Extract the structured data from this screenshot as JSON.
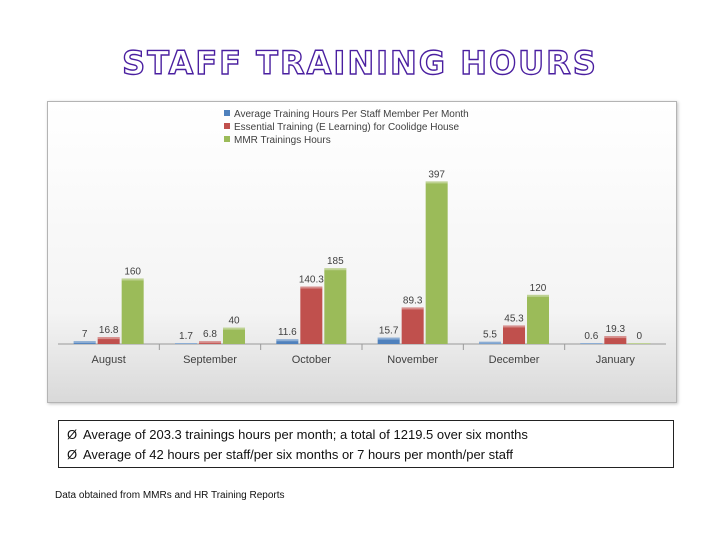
{
  "title": "STAFF TRAINING HOURS",
  "chart_data": {
    "type": "bar",
    "categories": [
      "August",
      "September",
      "October",
      "November",
      "December",
      "January"
    ],
    "series": [
      {
        "name": "Average Training Hours Per Staff Member Per Month",
        "color": "#4f81bd",
        "values": [
          7,
          1.7,
          11.6,
          15.7,
          5.5,
          0.6
        ],
        "labels": [
          "7",
          "1.7",
          "11.6",
          "15.7",
          "5.5",
          "0.6"
        ]
      },
      {
        "name": "Essential Training (E Learning) for Coolidge House",
        "color": "#c0504d",
        "values": [
          16.8,
          6.8,
          140.3,
          89.3,
          45.3,
          19.3
        ],
        "labels": [
          "16.8",
          "6.8",
          "140.3",
          "89.3",
          "45.3",
          "19.3"
        ]
      },
      {
        "name": "MMR Trainings Hours",
        "color": "#9bbb59",
        "values": [
          160,
          40,
          185,
          397,
          120,
          0
        ],
        "labels": [
          "160",
          "40",
          "185",
          "397",
          "120",
          "0"
        ]
      }
    ],
    "ylim": [
      0,
      420
    ],
    "legend_position": "top",
    "grid": false
  },
  "notes": [
    {
      "bullet": "Ø",
      "text": "Average of 203.3 trainings hours per month; a total of 1219.5 over six months"
    },
    {
      "bullet": "Ø",
      "text": "Average of 42 hours per staff/per six months or 7 hours per month/per staff"
    }
  ],
  "source": "Data obtained from MMRs and HR Training  Reports"
}
